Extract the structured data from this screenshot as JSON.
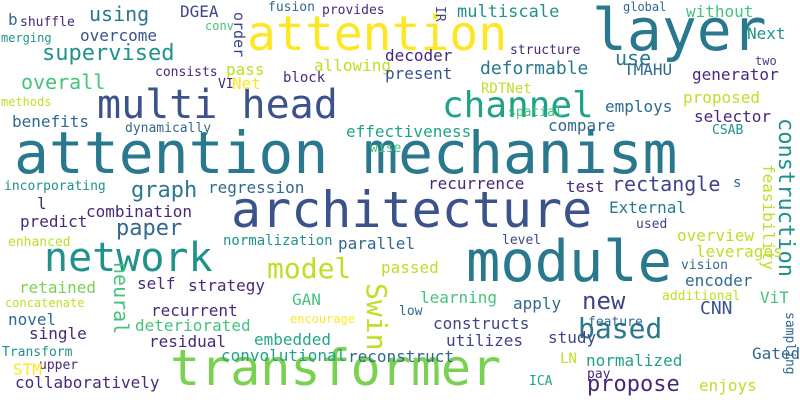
{
  "cloud": {
    "words": {
      "attention_mechanism": "attention mechanism",
      "architecture": "architecture",
      "transformer": "transformer",
      "module": "module",
      "layer": "layer",
      "attention_1": "attention",
      "multi_head": "multi head",
      "network": "network",
      "channel": "channel",
      "model": "model",
      "swin": "Swin",
      "based": "based",
      "construction": "construction",
      "new": "new",
      "propose": "propose",
      "supervised": "supervised",
      "graph": "graph",
      "paper": "paper",
      "using": "using",
      "overcome": "overcome",
      "overall": "overall",
      "neural": "neural",
      "deformable": "deformable",
      "cnn": "CNN",
      "attention_2": "attention",
      "dgea": "DGEA",
      "order": "order",
      "fusion": "fusion",
      "provides": "provides",
      "ir": "IR",
      "multiscale": "multiscale",
      "global": "global",
      "without": "without",
      "b": "b",
      "shuffle": "shuffle",
      "merging": "merging",
      "conv": "conv",
      "next": "Next",
      "decoder": "decoder",
      "structure": "structure",
      "use": "use",
      "two": "two",
      "consists": "consists",
      "pass": "pass",
      "allowing": "allowing",
      "tmahu": "TMAHU",
      "vi": "VI",
      "net": "Net",
      "block": "block",
      "present": "present",
      "generator": "generator",
      "rdtnet": "RDTNet",
      "employs": "employs",
      "proposed": "proposed",
      "methods": "methods",
      "spatial": "spatial",
      "selector": "selector",
      "benefits": "benefits",
      "compare": "compare",
      "dynamically": "dynamically",
      "effectiveness": "effectiveness",
      "csab": "CSAB",
      "wise": "wise",
      "s": "s",
      "incorporating": "incorporating",
      "regression": "regression",
      "recurrence": "recurrence",
      "test": "test",
      "rectangle": "rectangle",
      "feasibility": "feasibility",
      "l": "l",
      "predict": "predict",
      "combination": "combination",
      "external": "External",
      "used": "used",
      "enhanced": "enhanced",
      "normalization": "normalization",
      "parallel": "parallel",
      "level": "level",
      "overview": "overview",
      "leverages": "leverages",
      "vision": "vision",
      "passed": "passed",
      "encoder": "encoder",
      "retained": "retained",
      "self": "self",
      "strategy": "strategy",
      "concatenate": "concatenate",
      "gan": "GAN",
      "learning": "learning",
      "apply": "apply",
      "additional": "additional",
      "vit": "ViT",
      "novel": "novel",
      "encourage": "encourage",
      "low": "low",
      "recurrent": "recurrent",
      "deteriorated": "deteriorated",
      "constructs": "constructs",
      "feature": "feature",
      "sampling": "sampling",
      "single": "single",
      "embedded": "embedded",
      "study": "study",
      "residual": "residual",
      "utilizes": "utilizes",
      "transform": "Transform",
      "convolutional": "convolutional",
      "reconstruct": "reconstruct",
      "ln": "LN",
      "normalized": "normalized",
      "gated": "Gated",
      "upper": "upper",
      "stm": "STM",
      "pay": "pay",
      "collaboratively": "collaboratively",
      "ica": "ICA",
      "enjoys": "enjoys"
    },
    "palette": [
      "#fde725",
      "#bddf26",
      "#7ad151",
      "#44c37d",
      "#22a884",
      "#21918c",
      "#2a788e",
      "#31688e",
      "#3b528b",
      "#414487",
      "#482878"
    ]
  }
}
